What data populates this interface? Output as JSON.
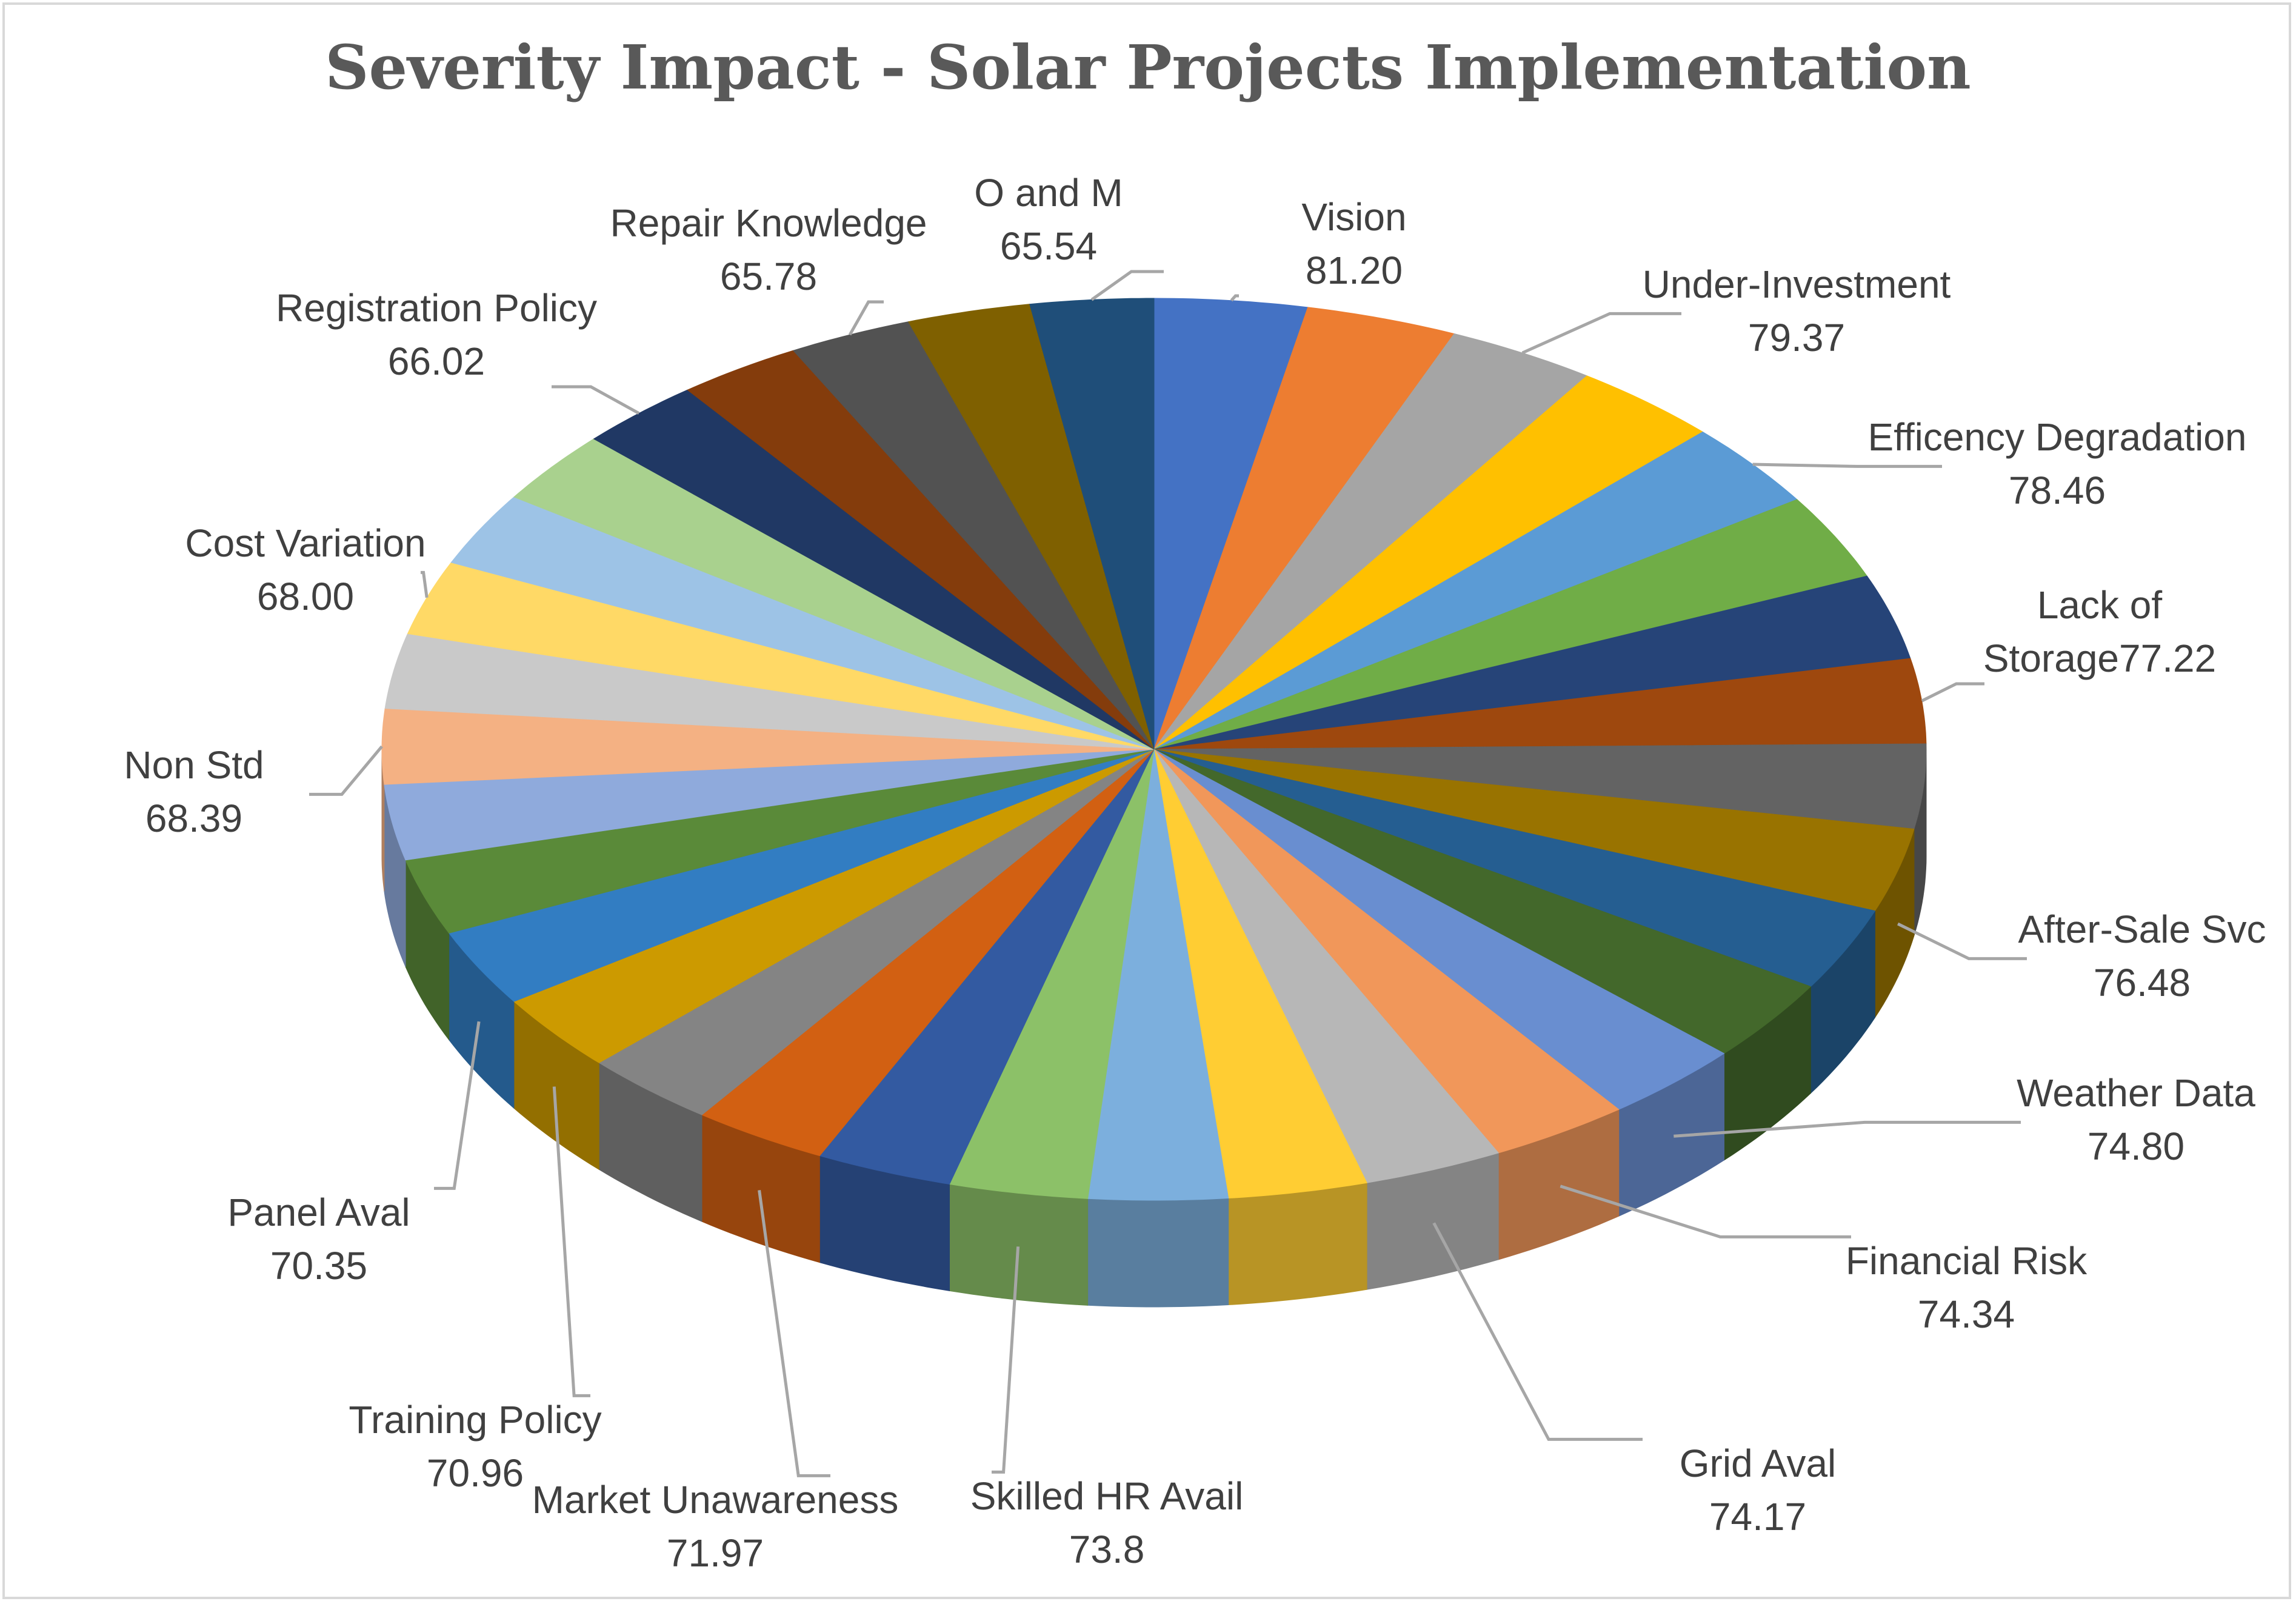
{
  "chart_data": {
    "type": "pie",
    "title": "Severity Impact - Solar Projects Implementation",
    "style": "3d-pie",
    "slices": [
      {
        "label": "Vision",
        "value": 81.2,
        "display": "81.20",
        "color": "#4472c4",
        "labeled": true
      },
      {
        "label": "",
        "value": 80.5,
        "display": "",
        "color": "#ed7d31",
        "labeled": false
      },
      {
        "label": "Under-Investment",
        "value": 79.37,
        "display": "79.37",
        "color": "#a5a5a5",
        "labeled": true
      },
      {
        "label": "",
        "value": 79.0,
        "display": "",
        "color": "#ffc000",
        "labeled": false
      },
      {
        "label": "Efficency Degradation",
        "value": 78.46,
        "display": "78.46",
        "color": "#5b9bd5",
        "labeled": true
      },
      {
        "label": "",
        "value": 78.0,
        "display": "",
        "color": "#70ad47",
        "labeled": false
      },
      {
        "label": "",
        "value": 77.6,
        "display": "",
        "color": "#264478",
        "labeled": false
      },
      {
        "label": "Lack of Storage",
        "value": 77.22,
        "display": "Lack of|Storage77.22",
        "color": "#9e480e",
        "labeled": true
      },
      {
        "label": "",
        "value": 76.9,
        "display": "",
        "color": "#636363",
        "labeled": false
      },
      {
        "label": "After-Sale Svc",
        "value": 76.48,
        "display": "76.48",
        "color": "#997300",
        "labeled": true
      },
      {
        "label": "",
        "value": 76.0,
        "display": "",
        "color": "#255e91",
        "labeled": false
      },
      {
        "label": "",
        "value": 75.4,
        "display": "",
        "color": "#43682b",
        "labeled": false
      },
      {
        "label": "Weather Data",
        "value": 74.8,
        "display": "74.80",
        "color": "#698ed0",
        "labeled": true
      },
      {
        "label": "Financial Risk",
        "value": 74.34,
        "display": "74.34",
        "color": "#f1975a",
        "labeled": true
      },
      {
        "label": "Grid Aval",
        "value": 74.17,
        "display": "74.17",
        "color": "#b7b7b7",
        "labeled": true
      },
      {
        "label": "",
        "value": 74.0,
        "display": "",
        "color": "#ffcd33",
        "labeled": false
      },
      {
        "label": "",
        "value": 73.9,
        "display": "",
        "color": "#7cafdd",
        "labeled": false
      },
      {
        "label": "Skilled HR Avail",
        "value": 73.8,
        "display": "73.8",
        "color": "#8cc168",
        "labeled": true
      },
      {
        "label": "",
        "value": 72.8,
        "display": "",
        "color": "#335aa1",
        "labeled": false
      },
      {
        "label": "Market Unawareness",
        "value": 71.97,
        "display": "71.97",
        "color": "#d26012",
        "labeled": true
      },
      {
        "label": "",
        "value": 71.5,
        "display": "",
        "color": "#848484",
        "labeled": false
      },
      {
        "label": "Training Policy",
        "value": 70.96,
        "display": "70.96",
        "color": "#cc9a00",
        "labeled": true
      },
      {
        "label": "Panel Aval",
        "value": 70.35,
        "display": "70.35",
        "color": "#327dc2",
        "labeled": true
      },
      {
        "label": "",
        "value": 69.5,
        "display": "",
        "color": "#5a8a39",
        "labeled": false
      },
      {
        "label": "",
        "value": 68.9,
        "display": "",
        "color": "#8faadc",
        "labeled": false
      },
      {
        "label": "Non Std",
        "value": 68.39,
        "display": "68.39",
        "color": "#f4b183",
        "labeled": true
      },
      {
        "label": "",
        "value": 68.2,
        "display": "",
        "color": "#c9c9c9",
        "labeled": false
      },
      {
        "label": "Cost Variation",
        "value": 68.0,
        "display": "68.00",
        "color": "#ffd966",
        "labeled": true
      },
      {
        "label": "",
        "value": 67.5,
        "display": "",
        "color": "#9dc3e6",
        "labeled": false
      },
      {
        "label": "",
        "value": 67.0,
        "display": "",
        "color": "#a9d18e",
        "labeled": false
      },
      {
        "label": "Registration Policy",
        "value": 66.02,
        "display": "66.02",
        "color": "#203864",
        "labeled": true
      },
      {
        "label": "",
        "value": 65.9,
        "display": "",
        "color": "#843c0c",
        "labeled": false
      },
      {
        "label": "Repair Knowledge",
        "value": 65.78,
        "display": "65.78",
        "color": "#525252",
        "labeled": true
      },
      {
        "label": "",
        "value": 65.6,
        "display": "",
        "color": "#7f6000",
        "labeled": false
      },
      {
        "label": "O and M",
        "value": 65.54,
        "display": "65.54",
        "color": "#1f4e79",
        "labeled": true
      }
    ]
  }
}
